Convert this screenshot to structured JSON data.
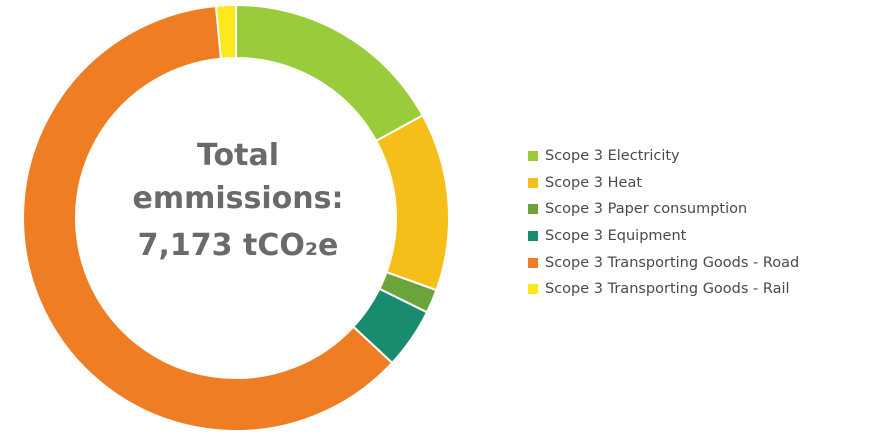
{
  "center": {
    "line1": "Total",
    "line2": "emmissions:",
    "line3": "7,173 tCO₂e"
  },
  "chart_data": {
    "type": "pie",
    "variant": "donut",
    "title": "",
    "total": 7173,
    "unit": "tCO₂e",
    "legend_position": "right",
    "categories": [
      "Scope 3 Electricity",
      "Scope 3 Heat",
      "Scope 3 Paper consumption",
      "Scope 3 Equipment",
      "Scope 3 Transporting Goods - Road",
      "Scope 3 Transporting Goods - Rail"
    ],
    "values": [
      17.0,
      13.5,
      1.8,
      4.6,
      61.6,
      1.5
    ],
    "value_unit": "percent of total (estimated)",
    "colors": [
      "#9acb3b",
      "#f6be18",
      "#6ba43a",
      "#198b6e",
      "#ee7d24",
      "#fde81c"
    ]
  }
}
